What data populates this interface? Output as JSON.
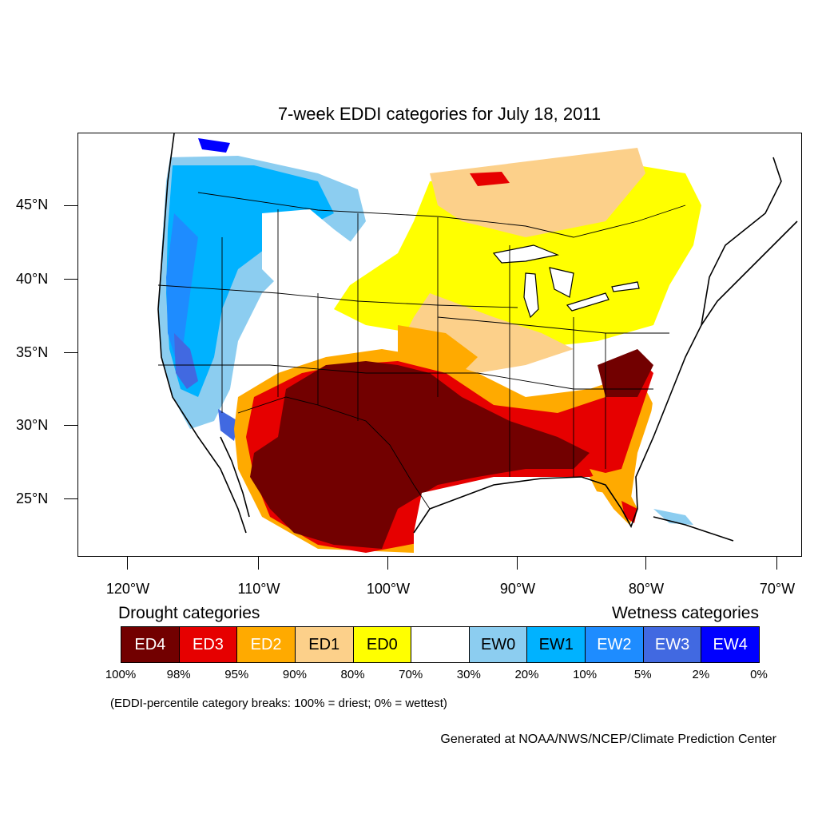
{
  "title": "7-week EDDI categories for July 18, 2011",
  "map": {
    "lat_labels": [
      "45°N",
      "40°N",
      "35°N",
      "30°N",
      "25°N"
    ],
    "lon_labels": [
      "120°W",
      "110°W",
      "100°W",
      "90°W",
      "80°W",
      "70°W"
    ],
    "colors": {
      "ED4": "#720000",
      "ED3": "#e60000",
      "ED2": "#ffaa00",
      "ED1": "#fcd08a",
      "ED0": "#ffff00",
      "EW0": "#8ccdf0",
      "EW1": "#00b2ff",
      "EW2": "#1e8cff",
      "EW3": "#4169e1",
      "EW4": "#0000ff"
    }
  },
  "legend": {
    "drought_title": "Drought categories",
    "wetness_title": "Wetness categories",
    "categories": [
      {
        "label": "ED4",
        "color": "#720000",
        "text_color": "#ffffff"
      },
      {
        "label": "ED3",
        "color": "#e60000",
        "text_color": "#ffffff"
      },
      {
        "label": "ED2",
        "color": "#ffaa00",
        "text_color": "#ffffff"
      },
      {
        "label": "ED1",
        "color": "#fcd08a",
        "text_color": "#000000"
      },
      {
        "label": "ED0",
        "color": "#ffff00",
        "text_color": "#000000"
      },
      {
        "label": "",
        "color": "#ffffff",
        "text_color": "#000000"
      },
      {
        "label": "EW0",
        "color": "#8ccdf0",
        "text_color": "#000000"
      },
      {
        "label": "EW1",
        "color": "#00b2ff",
        "text_color": "#000000"
      },
      {
        "label": "EW2",
        "color": "#1e8cff",
        "text_color": "#ffffff"
      },
      {
        "label": "EW3",
        "color": "#4169e1",
        "text_color": "#ffffff"
      },
      {
        "label": "EW4",
        "color": "#0000ff",
        "text_color": "#ffffff"
      }
    ],
    "breaks": [
      "100%",
      "98%",
      "95%",
      "90%",
      "80%",
      "70%",
      "30%",
      "20%",
      "10%",
      "5%",
      "2%",
      "0%"
    ]
  },
  "note": "(EDDI-percentile category breaks: 100% = driest; 0% = wettest)",
  "credit": "Generated at NOAA/NWS/NCEP/Climate Prediction Center"
}
